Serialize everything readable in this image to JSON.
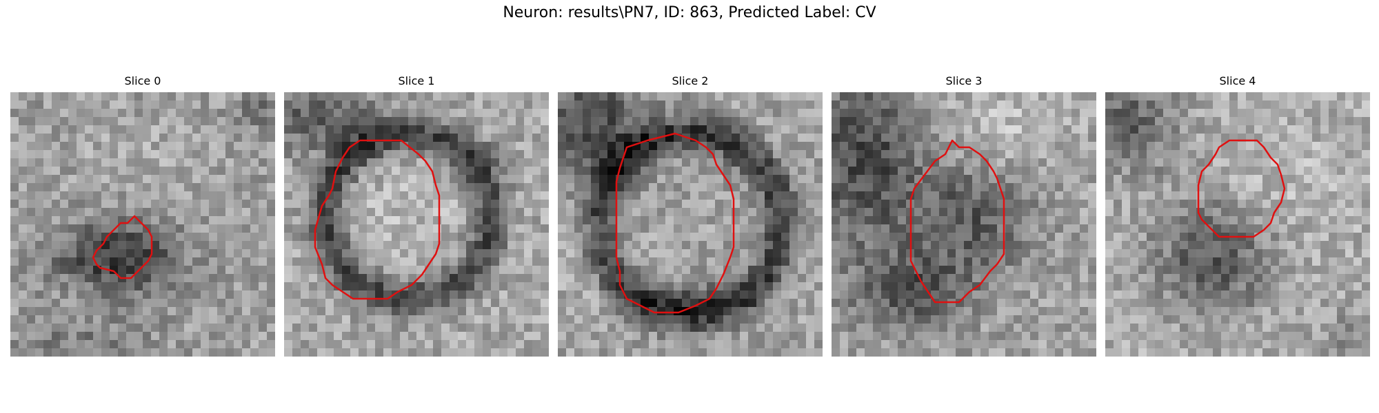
{
  "figure": {
    "title": "Neuron: results\\PN7, ID: 863, Predicted Label: CV"
  },
  "panels": [
    {
      "title": "Slice 0"
    },
    {
      "title": "Slice 1"
    },
    {
      "title": "Slice 2"
    },
    {
      "title": "Slice 3"
    },
    {
      "title": "Slice 4"
    }
  ],
  "colors": {
    "contour": "#e01010",
    "background": "#ffffff"
  }
}
